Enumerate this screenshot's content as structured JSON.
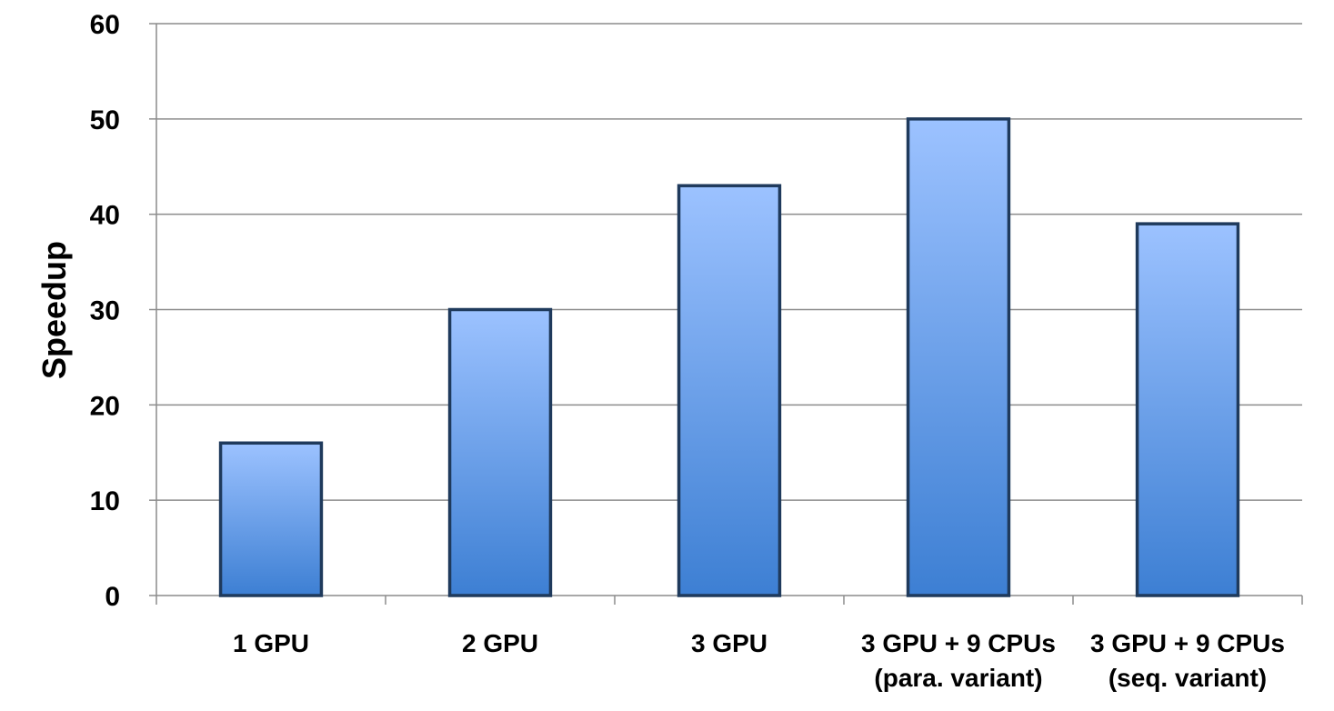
{
  "chart_data": {
    "type": "bar",
    "categories": [
      [
        "1 GPU"
      ],
      [
        "2 GPU"
      ],
      [
        "3 GPU"
      ],
      [
        "3 GPU + 9 CPUs",
        "(para. variant)"
      ],
      [
        "3 GPU + 9 CPUs",
        "(seq. variant)"
      ]
    ],
    "values": [
      16,
      30,
      43,
      50,
      39
    ],
    "ylabel": "Speedup",
    "ylim": [
      0,
      60
    ],
    "yticks": [
      0,
      10,
      20,
      30,
      40,
      50,
      60
    ],
    "grid": true,
    "legend": "none",
    "colors": {
      "bar_top": "#9cc2ff",
      "bar_bottom": "#3d7fd3",
      "bar_edge": "#1f3a5c",
      "grid": "#8c8c8c"
    }
  }
}
